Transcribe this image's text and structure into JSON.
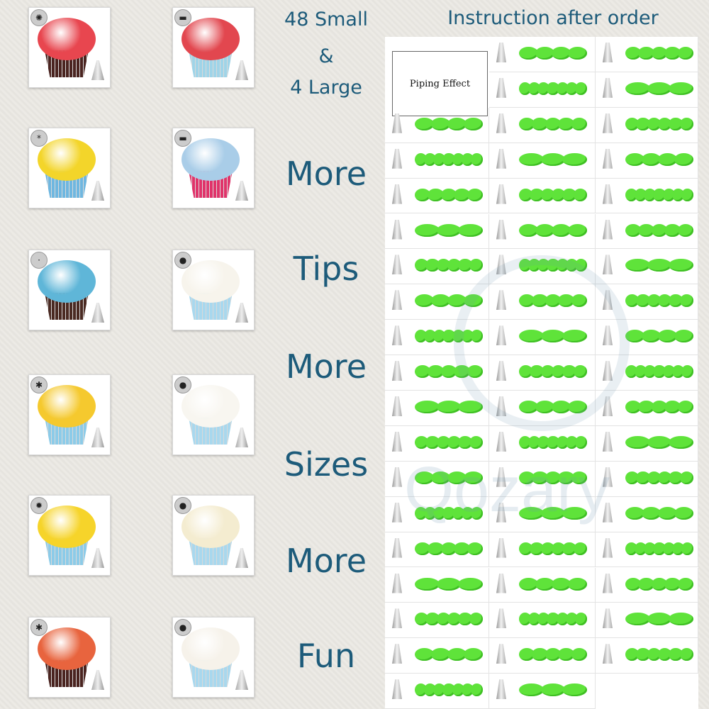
{
  "headline": {
    "line1": "48 Small",
    "line2": "&",
    "line3": "4 Large"
  },
  "words": [
    "More",
    "Tips",
    "More",
    "Sizes",
    "More",
    "Fun"
  ],
  "instruction_title": "Instruction after order",
  "piping_effect_label": "Piping Effect",
  "watermark": "Qozary",
  "colors": {
    "text": "#1d5b7a",
    "icing": "#5fe33a"
  },
  "photos": [
    {
      "frosting": "#e8464f",
      "liner": "#4a2420",
      "badge": "✺"
    },
    {
      "frosting": "#e2474f",
      "liner": "#9fd4e8",
      "badge": "▬"
    },
    {
      "frosting": "#f3d52a",
      "liner": "#6fb7e0",
      "badge": "*"
    },
    {
      "frosting": "#a9cde8",
      "liner": "#e0336a",
      "badge": "▬"
    },
    {
      "frosting": "#5fb6d8",
      "liner": "#4a2a22",
      "badge": "·"
    },
    {
      "frosting": "#f7f4ec",
      "liner": "#a8d8ee",
      "badge": "●"
    },
    {
      "frosting": "#f5c92e",
      "liner": "#8ccbe8",
      "badge": "✱"
    },
    {
      "frosting": "#f8f6f0",
      "liner": "#a8d8ee",
      "badge": "●"
    },
    {
      "frosting": "#f6d42a",
      "liner": "#8ccbe8",
      "badge": "✹"
    },
    {
      "frosting": "#f4ecd0",
      "liner": "#a8d8ee",
      "badge": "●"
    },
    {
      "frosting": "#e8643e",
      "liner": "#4a2420",
      "badge": "✱"
    },
    {
      "frosting": "#f6f2ea",
      "liner": "#a8d8ee",
      "badge": "●"
    }
  ]
}
